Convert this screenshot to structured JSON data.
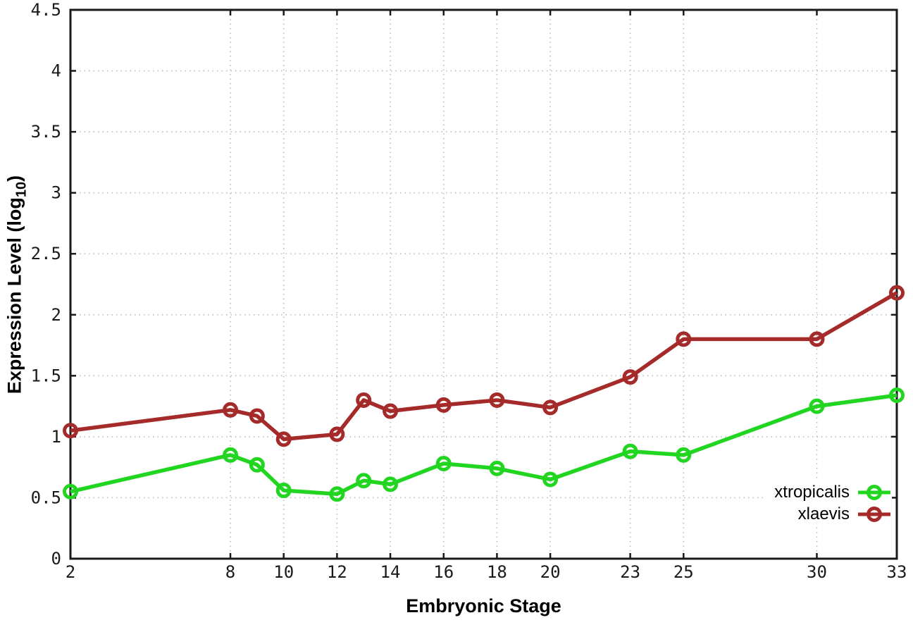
{
  "chart_data": {
    "type": "line",
    "x": [
      2,
      8,
      9,
      10,
      12,
      13,
      14,
      16,
      18,
      20,
      23,
      25,
      30,
      33
    ],
    "series": [
      {
        "name": "xtropicalis",
        "color": "#21d521",
        "marker": "open-circle",
        "values": [
          0.55,
          0.85,
          0.77,
          0.56,
          0.53,
          0.64,
          0.61,
          0.78,
          0.74,
          0.65,
          0.88,
          0.85,
          1.25,
          1.34
        ]
      },
      {
        "name": "xlaevis",
        "color": "#a52a2a",
        "marker": "open-circle",
        "values": [
          1.05,
          1.22,
          1.17,
          0.98,
          1.02,
          1.3,
          1.21,
          1.26,
          1.3,
          1.24,
          1.49,
          1.8,
          1.8,
          2.18
        ]
      }
    ],
    "title": "",
    "xlabel": "Embryonic Stage",
    "ylabel": "Expression Level (log10)",
    "ylabel_parts": {
      "pre": "Expression Level (log",
      "sub": "10",
      "post": ")"
    },
    "xlim": [
      2,
      33
    ],
    "ylim": [
      0,
      4.5
    ],
    "xticks": [
      2,
      8,
      10,
      12,
      14,
      16,
      18,
      20,
      23,
      25,
      30,
      33
    ],
    "xtick_labels": [
      "2",
      "8",
      "10",
      "12",
      "14",
      "16",
      "18",
      "20",
      "23",
      "25",
      "30",
      "33"
    ],
    "yticks": [
      0,
      0.5,
      1,
      1.5,
      2,
      2.5,
      3,
      3.5,
      4,
      4.5
    ],
    "ytick_labels": [
      "0",
      "0.5",
      "1",
      "1.5",
      "2",
      "2.5",
      "3",
      "3.5",
      "4",
      "4.5"
    ],
    "grid": true,
    "grid_style": "dotted",
    "legend": {
      "location": "inside bottom-right",
      "entries": [
        "xtropicalis",
        "xlaevis"
      ]
    },
    "colors": {
      "border": "#1a1a1a",
      "tick_text": "#1a1a1a",
      "gridline": "#bcbcbc",
      "background": "#ffffff"
    }
  }
}
